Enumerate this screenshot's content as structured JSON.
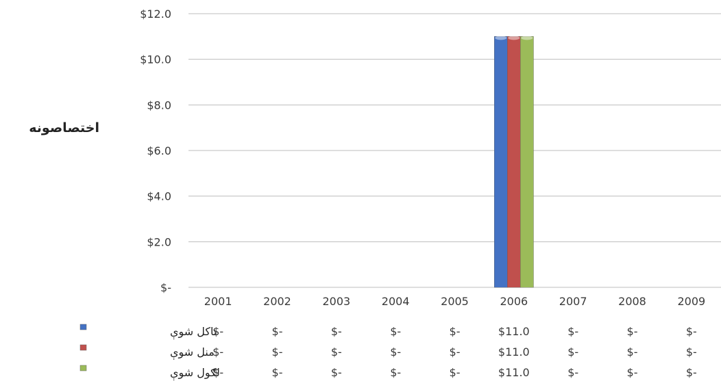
{
  "chart_data": {
    "type": "bar",
    "ylabel": "اختصاصونه",
    "categories": [
      "2001",
      "2002",
      "2003",
      "2004",
      "2005",
      "2006",
      "2007",
      "2008",
      "2009"
    ],
    "ylim": [
      0,
      12
    ],
    "yticks": [
      {
        "value": 0,
        "label": "$-"
      },
      {
        "value": 2,
        "label": "$2.0"
      },
      {
        "value": 4,
        "label": "$4.0"
      },
      {
        "value": 6,
        "label": "$6.0"
      },
      {
        "value": 8,
        "label": "$8.0"
      },
      {
        "value": 10,
        "label": "$10.0"
      },
      {
        "value": 12,
        "label": "$12.0"
      }
    ],
    "grid": true,
    "legend_placement": "data-table-left",
    "series": [
      {
        "name": "تاکل شوې",
        "color": "#4472c4",
        "values": [
          0,
          0,
          0,
          0,
          0,
          11,
          0,
          0,
          0
        ],
        "table": [
          "$-",
          "$-",
          "$-",
          "$-",
          "$-",
          "$11.0",
          "$-",
          "$-",
          "$-"
        ]
      },
      {
        "name": "منل شوې",
        "color": "#c0504d",
        "values": [
          0,
          0,
          0,
          0,
          0,
          11,
          0,
          0,
          0
        ],
        "table": [
          "$-",
          "$-",
          "$-",
          "$-",
          "$-",
          "$11.0",
          "$-",
          "$-",
          "$-"
        ]
      },
      {
        "name": "لګول شوې",
        "color": "#9bbb59",
        "values": [
          0,
          0,
          0,
          0,
          0,
          11,
          0,
          0,
          0
        ],
        "table": [
          "$-",
          "$-",
          "$-",
          "$-",
          "$-",
          "$11.0",
          "$-",
          "$-",
          "$-"
        ]
      }
    ]
  }
}
